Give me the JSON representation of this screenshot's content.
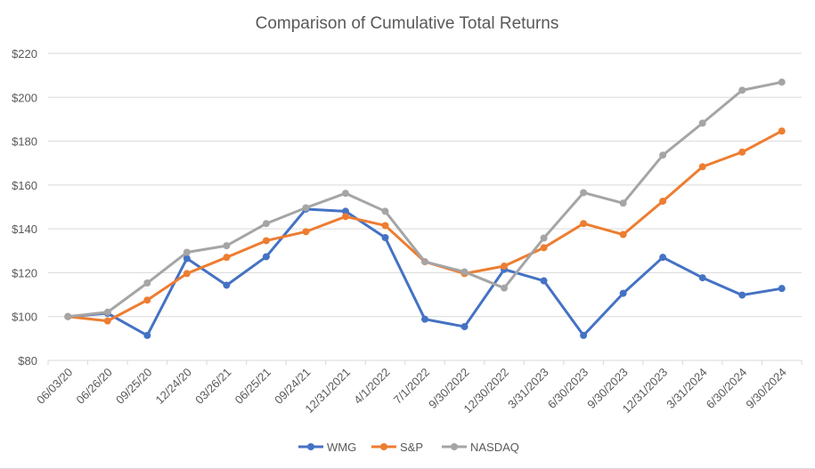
{
  "chart_data": {
    "type": "line",
    "title": "Comparison of Cumulative Total Returns",
    "xlabel": "",
    "ylabel": "",
    "ylim": [
      80,
      220
    ],
    "yticks": [
      "$80",
      "$100",
      "$120",
      "$140",
      "$160",
      "$180",
      "$200",
      "$220"
    ],
    "ytick_values": [
      80,
      100,
      120,
      140,
      160,
      180,
      200,
      220
    ],
    "grid": true,
    "legend": "bottom",
    "categories": [
      "06/03/20",
      "06/26/20",
      "09/25/20",
      "12/24/20",
      "03/26/21",
      "06/25/21",
      "09/24/21",
      "12/31/2021",
      "4/1/2022",
      "7/1/2022",
      "9/30/2022",
      "12/30/2022",
      "3/31/2023",
      "6/30/2023",
      "9/30/2023",
      "12/31/2023",
      "3/31/2024",
      "6/30/2024",
      "9/30/2024"
    ],
    "series": [
      {
        "name": "WMG",
        "color": "#4472c4",
        "values": [
          100,
          101.5,
          91.4,
          126.5,
          114.3,
          127.3,
          149,
          148,
          136,
          98.8,
          95.4,
          121.5,
          116.3,
          91.4,
          110.6,
          127,
          117.7,
          109.8,
          112.8
        ]
      },
      {
        "name": "S&P",
        "color": "#ed7d31",
        "values": [
          100,
          98,
          107.5,
          119.6,
          127,
          134.6,
          138.7,
          145.6,
          141.5,
          125,
          119.6,
          123,
          131.4,
          142.4,
          137.4,
          152.6,
          168.3,
          175,
          184.6
        ]
      },
      {
        "name": "NASDAQ",
        "color": "#a5a5a5",
        "values": [
          100,
          102,
          115.3,
          129.3,
          132.3,
          142.4,
          149.6,
          156.2,
          148,
          125,
          120.4,
          113,
          135.8,
          156.5,
          151.7,
          173.6,
          188.2,
          203.2,
          206.9
        ]
      }
    ]
  }
}
